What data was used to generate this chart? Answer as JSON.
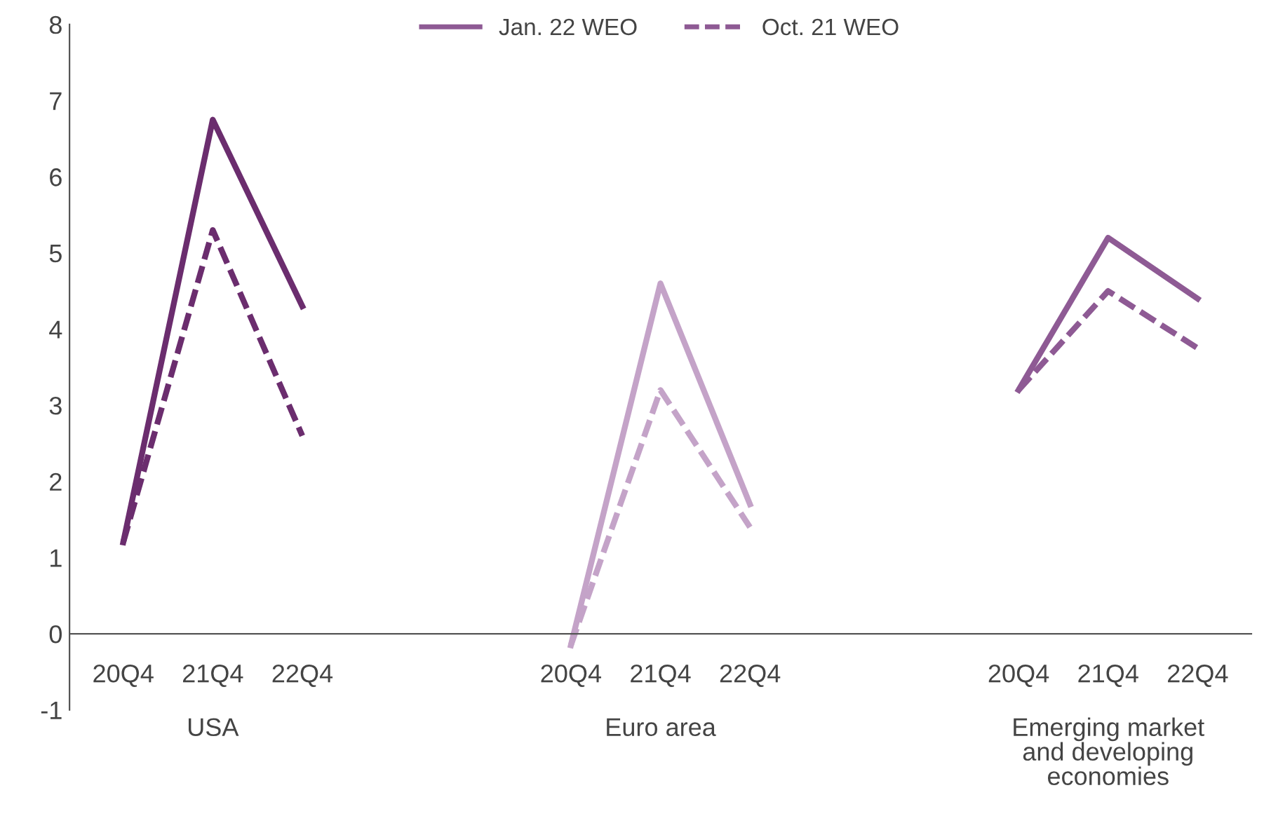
{
  "chart_data": {
    "type": "line",
    "categories": [
      "20Q4",
      "21Q4",
      "22Q4",
      null,
      null,
      "20Q4",
      "21Q4",
      "22Q4",
      null,
      null,
      "20Q4",
      "21Q4",
      "22Q4"
    ],
    "series": [
      {
        "color": "#6b2d6e",
        "line_style": "solid",
        "values": [
          1.2,
          6.75,
          4.3,
          null,
          null,
          null,
          null,
          null,
          null,
          null,
          null,
          null,
          null
        ]
      },
      {
        "color": "#6b2d6e",
        "line_style": "dashed",
        "values": [
          1.2,
          5.3,
          2.6,
          null,
          null,
          null,
          null,
          null,
          null,
          null,
          null,
          null,
          null
        ]
      },
      {
        "color": "#c4a3c8",
        "line_style": "solid",
        "values": [
          null,
          null,
          null,
          null,
          null,
          -0.15,
          4.6,
          1.7,
          null,
          null,
          null,
          null,
          null
        ]
      },
      {
        "color": "#c4a3c8",
        "line_style": "dashed",
        "values": [
          null,
          null,
          null,
          null,
          null,
          -0.15,
          3.2,
          1.4,
          null,
          null,
          null,
          null,
          null
        ]
      },
      {
        "name": "Jan. 22 WEO",
        "color": "#8e5a94",
        "line_style": "solid",
        "values": [
          null,
          null,
          null,
          null,
          null,
          null,
          null,
          null,
          null,
          null,
          3.2,
          5.2,
          4.4
        ]
      },
      {
        "name": "Oct. 21 WEO",
        "color": "#8e5a94",
        "line_style": "dashed",
        "values": [
          null,
          null,
          null,
          null,
          null,
          null,
          null,
          null,
          null,
          null,
          3.2,
          4.5,
          3.75
        ]
      }
    ],
    "ylim": [
      -1,
      8
    ],
    "yticks": [
      -1,
      0,
      1,
      2,
      3,
      4,
      5,
      6,
      7,
      8
    ],
    "grid": false,
    "legend": "top",
    "marker": "none",
    "annotations": [
      "USA",
      "Euro area",
      "Emerging market\nand developing\neconomies"
    ]
  }
}
